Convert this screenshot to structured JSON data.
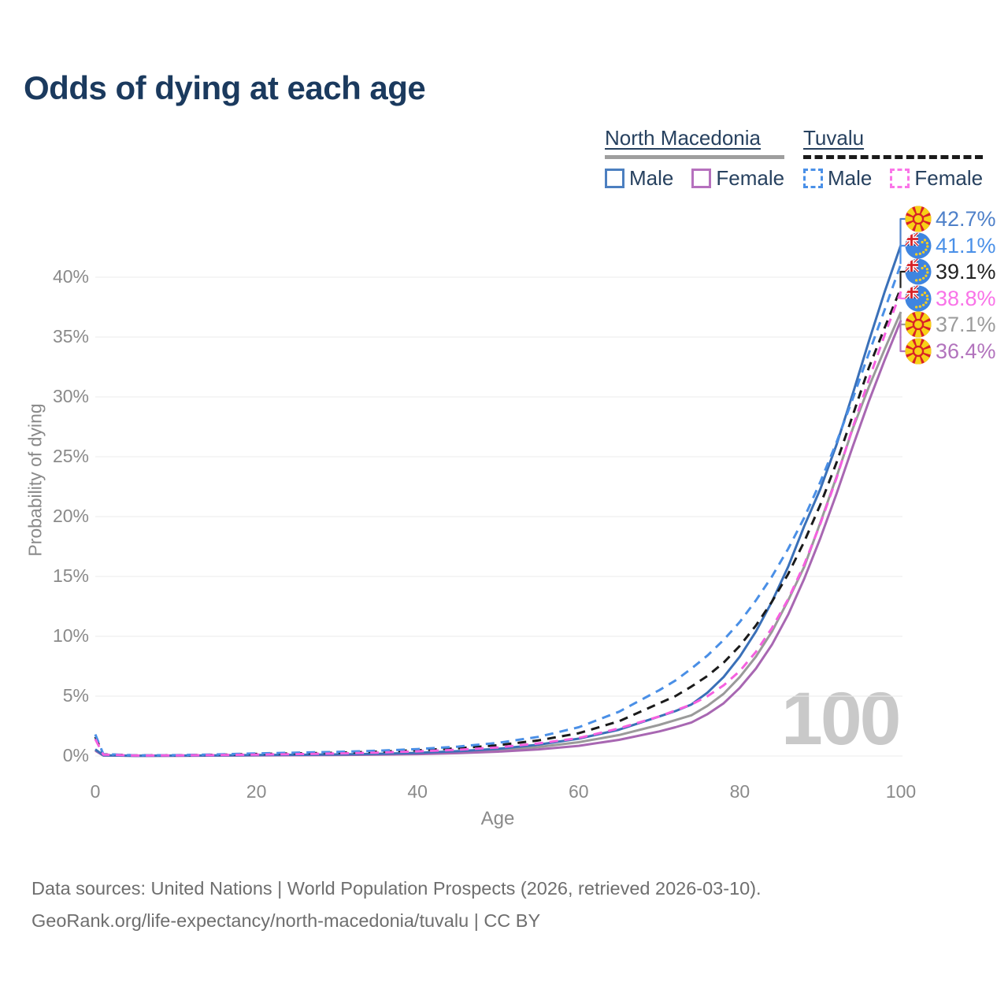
{
  "title": "Odds of dying at each age",
  "watermark": "100",
  "legend": {
    "groups": [
      {
        "name": "North Macedonia",
        "line_style": "solid",
        "underline_color": "#9e9e9e",
        "items": [
          {
            "label": "Male",
            "color": "#4c7fc0",
            "dashed": false
          },
          {
            "label": "Female",
            "color": "#b671be",
            "dashed": false
          }
        ]
      },
      {
        "name": "Tuvalu",
        "line_style": "dashed",
        "underline_color": "#1a1a1a",
        "items": [
          {
            "label": "Male",
            "color": "#4a90e8",
            "dashed": true
          },
          {
            "label": "Female",
            "color": "#fa75e8",
            "dashed": true
          }
        ]
      }
    ]
  },
  "axes": {
    "y_title": "Probability of dying",
    "x_title": "Age",
    "y_tick_labels": [
      "0%",
      "5%",
      "10%",
      "15%",
      "20%",
      "25%",
      "30%",
      "35%",
      "40%"
    ],
    "x_tick_labels": [
      "0",
      "20",
      "40",
      "60",
      "80",
      "100"
    ]
  },
  "end_labels": [
    {
      "text": "42.7%",
      "value_pct": 42.7,
      "flag": "north-macedonia",
      "color": "#4e80c9",
      "series": "North Macedonia Male"
    },
    {
      "text": "41.1%",
      "value_pct": 41.1,
      "flag": "tuvalu",
      "color": "#4a90e8",
      "series": "Tuvalu Male"
    },
    {
      "text": "39.1%",
      "value_pct": 39.1,
      "flag": "tuvalu",
      "color": "#222222",
      "series": "Tuvalu All"
    },
    {
      "text": "38.8%",
      "value_pct": 38.8,
      "flag": "tuvalu",
      "color": "#f973e8",
      "series": "Tuvalu Female"
    },
    {
      "text": "37.1%",
      "value_pct": 37.1,
      "flag": "north-macedonia",
      "color": "#9b9b9b",
      "series": "North Macedonia All"
    },
    {
      "text": "36.4%",
      "value_pct": 36.4,
      "flag": "north-macedonia",
      "color": "#b273bd",
      "series": "North Macedonia Female"
    }
  ],
  "footer": {
    "line1": "Data sources: United Nations | World Population Prospects (2026, retrieved 2026-03-10).",
    "line2": "GeoRank.org/life-expectancy/north-macedonia/tuvalu | CC BY"
  },
  "chart_data": {
    "type": "line",
    "title": "Odds of dying at each age",
    "xlabel": "Age",
    "ylabel": "Probability of dying",
    "xlim": [
      0,
      100
    ],
    "ylim_pct": [
      0,
      44
    ],
    "x_ticks": [
      0,
      20,
      40,
      60,
      80,
      100
    ],
    "y_ticks_pct": [
      0,
      5,
      10,
      15,
      20,
      25,
      30,
      35,
      40
    ],
    "grid": "horizontal",
    "legend_position": "top-right",
    "age_indicator": "100",
    "x": [
      0,
      1,
      5,
      10,
      15,
      20,
      25,
      30,
      35,
      40,
      45,
      50,
      55,
      60,
      65,
      70,
      72,
      74,
      76,
      78,
      80,
      82,
      84,
      86,
      88,
      90,
      92,
      94,
      96,
      98,
      100
    ],
    "series": [
      {
        "name": "North Macedonia All",
        "color": "#9a9a9a",
        "dash": false,
        "values_pct": [
          0.5,
          0.05,
          0.02,
          0.025,
          0.04,
          0.065,
          0.085,
          0.11,
          0.15,
          0.21,
          0.32,
          0.48,
          0.75,
          1.15,
          1.75,
          2.6,
          3.0,
          3.4,
          4.2,
          5.2,
          6.6,
          8.3,
          10.4,
          13.0,
          15.8,
          19.5,
          23.3,
          27.3,
          30.8,
          34.0,
          37.1
        ]
      },
      {
        "name": "North Macedonia Female",
        "color": "#a867b2",
        "dash": false,
        "values_pct": [
          0.45,
          0.04,
          0.015,
          0.02,
          0.03,
          0.05,
          0.065,
          0.085,
          0.12,
          0.16,
          0.24,
          0.36,
          0.55,
          0.85,
          1.35,
          2.05,
          2.4,
          2.8,
          3.5,
          4.4,
          5.7,
          7.3,
          9.3,
          11.8,
          14.8,
          18.2,
          21.9,
          25.8,
          29.6,
          33.1,
          36.4
        ]
      },
      {
        "name": "North Macedonia Male",
        "color": "#3a70b8",
        "dash": false,
        "values_pct": [
          0.55,
          0.06,
          0.02,
          0.03,
          0.05,
          0.08,
          0.1,
          0.13,
          0.18,
          0.26,
          0.4,
          0.6,
          0.95,
          1.45,
          2.2,
          3.3,
          3.75,
          4.3,
          5.3,
          6.6,
          8.3,
          10.4,
          12.9,
          15.8,
          19.2,
          22.3,
          26.0,
          30.2,
          34.6,
          38.8,
          42.7
        ]
      },
      {
        "name": "Tuvalu All",
        "color": "#1a1a1a",
        "dash": true,
        "values_pct": [
          1.6,
          0.14,
          0.05,
          0.06,
          0.1,
          0.17,
          0.22,
          0.27,
          0.36,
          0.48,
          0.64,
          0.9,
          1.3,
          1.9,
          2.9,
          4.4,
          5.0,
          5.8,
          6.7,
          7.8,
          9.2,
          10.9,
          12.9,
          15.2,
          17.9,
          21.0,
          24.5,
          28.4,
          32.4,
          35.8,
          39.1
        ]
      },
      {
        "name": "Tuvalu Male",
        "color": "#4a8fe6",
        "dash": true,
        "values_pct": [
          1.8,
          0.16,
          0.06,
          0.07,
          0.13,
          0.22,
          0.28,
          0.34,
          0.44,
          0.58,
          0.78,
          1.1,
          1.6,
          2.4,
          3.7,
          5.5,
          6.3,
          7.3,
          8.4,
          9.7,
          11.2,
          13.0,
          15.0,
          17.3,
          19.9,
          22.9,
          26.2,
          29.8,
          33.6,
          37.3,
          41.1
        ]
      },
      {
        "name": "Tuvalu Female",
        "color": "#f560df",
        "dash": true,
        "values_pct": [
          1.4,
          0.12,
          0.04,
          0.05,
          0.08,
          0.12,
          0.16,
          0.21,
          0.28,
          0.39,
          0.52,
          0.72,
          1.05,
          1.5,
          2.3,
          3.3,
          3.8,
          4.3,
          5.0,
          5.9,
          7.1,
          8.7,
          10.7,
          13.1,
          16.0,
          19.4,
          23.2,
          27.4,
          31.4,
          35.2,
          38.8
        ]
      }
    ]
  }
}
